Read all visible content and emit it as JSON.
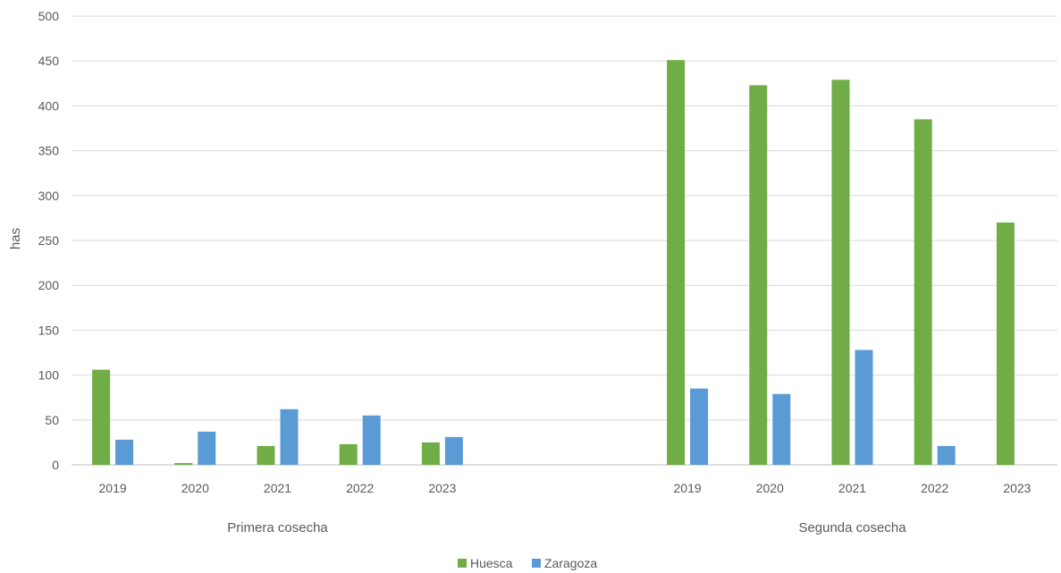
{
  "chart_data": {
    "type": "bar",
    "ylabel": "has",
    "ylim": [
      0,
      500
    ],
    "yticks": [
      0,
      50,
      100,
      150,
      200,
      250,
      300,
      350,
      400,
      450,
      500
    ],
    "grid": true,
    "legend_position": "bottom",
    "groups": [
      {
        "label": "Primera cosecha",
        "categories": [
          "2019",
          "2020",
          "2021",
          "2022",
          "2023"
        ]
      },
      {
        "label": "Segunda cosecha",
        "categories": [
          "2019",
          "2020",
          "2021",
          "2022",
          "2023"
        ]
      }
    ],
    "series": [
      {
        "name": "Huesca",
        "color": "#70AD47",
        "values": [
          [
            106,
            2,
            21,
            23,
            25
          ],
          [
            451,
            423,
            429,
            385,
            270
          ]
        ]
      },
      {
        "name": "Zaragoza",
        "color": "#5B9BD5",
        "values": [
          [
            28,
            37,
            62,
            55,
            31
          ],
          [
            85,
            79,
            128,
            21,
            0
          ]
        ]
      }
    ]
  }
}
